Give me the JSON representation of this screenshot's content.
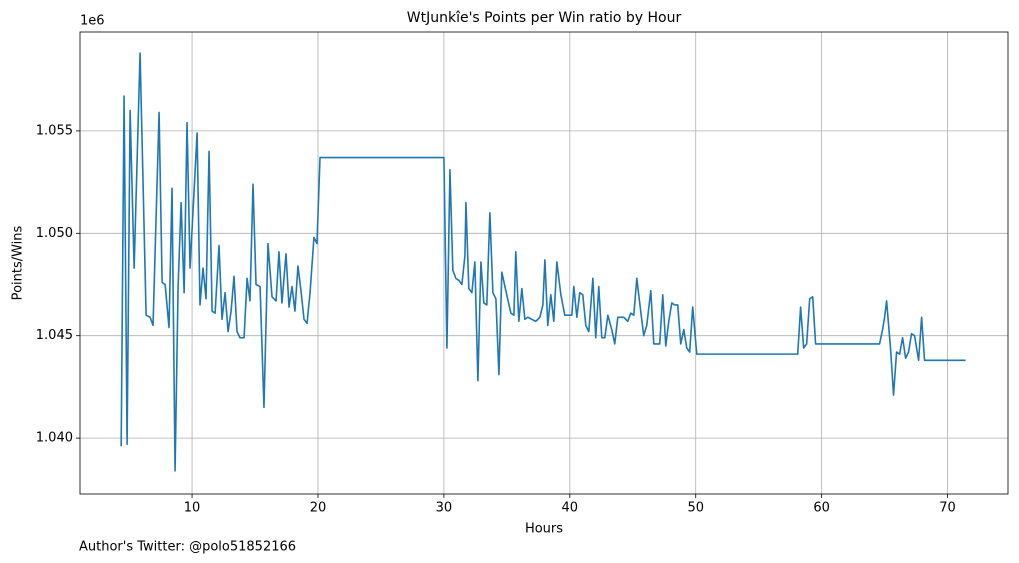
{
  "chart_data": {
    "type": "line",
    "title": "WtJunkîe's Points per Win ratio by Hour",
    "xlabel": "Hours",
    "ylabel": "Points/Wins",
    "y_offset_label": "1e6",
    "footnote": "Author's Twitter: @polo51852166",
    "color": "#1f77b4",
    "grid": true,
    "xlim": [
      1.1,
      74.8
    ],
    "xticks": [
      10,
      20,
      30,
      40,
      50,
      60,
      70
    ],
    "ylim": [
      1.03727,
      1.05983
    ],
    "yticks": [
      {
        "value": 1.04,
        "label": "1.040"
      },
      {
        "value": 1.045,
        "label": "1.045"
      },
      {
        "value": 1.05,
        "label": "1.050"
      },
      {
        "value": 1.055,
        "label": "1.055"
      }
    ],
    "x": [
      4.37,
      4.6,
      4.84,
      5.08,
      5.4,
      5.87,
      6.35,
      6.67,
      6.9,
      7.38,
      7.62,
      7.86,
      8.17,
      8.41,
      8.65,
      8.89,
      9.13,
      9.37,
      9.6,
      9.84,
      10.4,
      10.63,
      10.87,
      11.11,
      11.35,
      11.59,
      11.83,
      12.14,
      12.38,
      12.62,
      12.86,
      13.1,
      13.33,
      13.57,
      13.81,
      14.13,
      14.37,
      14.6,
      14.84,
      15.08,
      15.4,
      15.71,
      16.03,
      16.35,
      16.67,
      16.9,
      17.14,
      17.46,
      17.7,
      17.94,
      18.17,
      18.41,
      18.65,
      18.89,
      19.13,
      19.37,
      19.68,
      19.92,
      20.16,
      30.0,
      30.24,
      30.48,
      30.71,
      30.95,
      31.19,
      31.43,
      31.67,
      31.75,
      31.98,
      32.22,
      32.46,
      32.7,
      32.94,
      33.17,
      33.41,
      33.65,
      33.89,
      34.13,
      34.37,
      34.6,
      34.92,
      35.32,
      35.56,
      35.71,
      35.95,
      36.19,
      36.43,
      36.67,
      36.98,
      37.3,
      37.62,
      37.86,
      38.02,
      38.25,
      38.49,
      38.73,
      38.97,
      39.29,
      39.6,
      39.92,
      40.16,
      40.32,
      40.56,
      40.79,
      41.03,
      41.27,
      41.51,
      41.83,
      42.06,
      42.3,
      42.54,
      42.78,
      43.02,
      43.33,
      43.57,
      43.81,
      44.29,
      44.6,
      44.84,
      45.08,
      45.32,
      45.63,
      45.87,
      46.11,
      46.43,
      46.67,
      46.9,
      47.14,
      47.38,
      47.62,
      47.86,
      48.1,
      48.33,
      48.57,
      48.81,
      49.05,
      49.29,
      49.52,
      49.76,
      50.08,
      58.1,
      58.33,
      58.57,
      58.81,
      59.05,
      59.29,
      59.52,
      64.6,
      64.84,
      65.0,
      65.16,
      65.48,
      65.71,
      65.95,
      66.19,
      66.43,
      66.67,
      66.9,
      67.14,
      67.38,
      67.7,
      67.94,
      68.17,
      71.43
    ],
    "values": [
      1.0396,
      1.0567,
      1.0397,
      1.056,
      1.0483,
      1.0588,
      1.046,
      1.0459,
      1.0455,
      1.0559,
      1.0476,
      1.0475,
      1.0454,
      1.0522,
      1.0384,
      1.0474,
      1.0515,
      1.0471,
      1.0554,
      1.0483,
      1.0549,
      1.0465,
      1.0483,
      1.0468,
      1.054,
      1.0462,
      1.0461,
      1.0494,
      1.0458,
      1.0471,
      1.0452,
      1.0462,
      1.0479,
      1.0452,
      1.0449,
      1.0449,
      1.0478,
      1.0467,
      1.0524,
      1.0475,
      1.0474,
      1.0415,
      1.0495,
      1.0469,
      1.0467,
      1.0491,
      1.0466,
      1.049,
      1.0464,
      1.0474,
      1.0462,
      1.0484,
      1.0472,
      1.0458,
      1.0456,
      1.0471,
      1.0498,
      1.0495,
      1.0537,
      1.0537,
      1.0444,
      1.0531,
      1.0482,
      1.0478,
      1.0477,
      1.0475,
      1.0489,
      1.0515,
      1.0473,
      1.0471,
      1.0486,
      1.0428,
      1.0486,
      1.0466,
      1.0465,
      1.051,
      1.0471,
      1.0468,
      1.0431,
      1.0481,
      1.0472,
      1.0461,
      1.046,
      1.0491,
      1.0457,
      1.0473,
      1.0458,
      1.0459,
      1.0458,
      1.0457,
      1.0459,
      1.0465,
      1.0487,
      1.0455,
      1.047,
      1.0457,
      1.0486,
      1.047,
      1.046,
      1.046,
      1.046,
      1.0474,
      1.0459,
      1.0471,
      1.047,
      1.0455,
      1.0452,
      1.0478,
      1.0449,
      1.0474,
      1.0449,
      1.0449,
      1.046,
      1.0453,
      1.0446,
      1.0459,
      1.0459,
      1.0457,
      1.0461,
      1.046,
      1.0478,
      1.0462,
      1.045,
      1.0455,
      1.0472,
      1.0446,
      1.0446,
      1.0446,
      1.047,
      1.0445,
      1.0457,
      1.0466,
      1.0465,
      1.0465,
      1.0446,
      1.0453,
      1.0444,
      1.0442,
      1.0464,
      1.0441,
      1.0441,
      1.0464,
      1.0444,
      1.0446,
      1.0468,
      1.0469,
      1.0446,
      1.0446,
      1.0453,
      1.0459,
      1.0467,
      1.0443,
      1.0421,
      1.0442,
      1.0441,
      1.0449,
      1.0439,
      1.0442,
      1.0451,
      1.045,
      1.0438,
      1.0459,
      1.0438,
      1.0438
    ]
  }
}
